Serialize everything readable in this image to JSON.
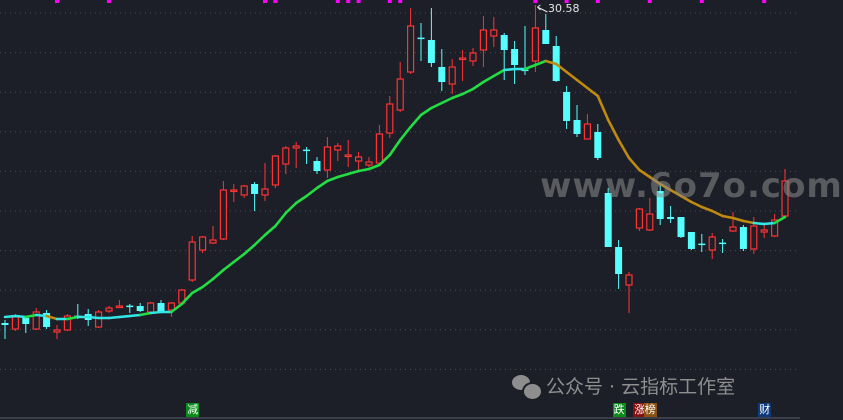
{
  "chart_data": {
    "type": "candlestick",
    "title": "",
    "high_label": "30.58",
    "grid": true,
    "colors": {
      "up": "#ff3333",
      "down": "#55ffff",
      "ma_up": "#22dd44",
      "ma_flat": "#33e6e6",
      "ma_down": "#c08a10",
      "marker": "#ff00ff",
      "background": "#1c1f27"
    },
    "candles": [
      [
        14.68,
        14.83,
        13.88,
        14.58
      ],
      [
        14.38,
        15.13,
        14.28,
        14.98
      ],
      [
        14.93,
        15.03,
        14.18,
        14.63
      ],
      [
        14.38,
        15.43,
        14.33,
        15.23
      ],
      [
        15.18,
        15.33,
        14.38,
        14.48
      ],
      [
        14.23,
        14.58,
        13.88,
        14.33
      ],
      [
        14.33,
        15.13,
        14.28,
        15.03
      ],
      [
        15.05,
        15.63,
        14.88,
        15.03
      ],
      [
        15.13,
        15.38,
        14.53,
        14.83
      ],
      [
        14.48,
        15.33,
        14.43,
        15.23
      ],
      [
        15.28,
        15.53,
        15.18,
        15.43
      ],
      [
        15.5,
        15.83,
        15.43,
        15.53
      ],
      [
        15.55,
        15.63,
        15.18,
        15.53
      ],
      [
        15.53,
        15.68,
        15.23,
        15.28
      ],
      [
        15.23,
        15.73,
        15.18,
        15.68
      ],
      [
        15.68,
        15.83,
        15.18,
        15.23
      ],
      [
        15.33,
        15.73,
        14.98,
        15.68
      ],
      [
        15.68,
        16.38,
        15.63,
        16.33
      ],
      [
        16.83,
        19.03,
        16.73,
        18.73
      ],
      [
        18.33,
        19.03,
        18.18,
        18.98
      ],
      [
        18.68,
        19.53,
        18.63,
        18.83
      ],
      [
        18.88,
        21.78,
        18.83,
        21.33
      ],
      [
        21.28,
        21.63,
        20.73,
        21.33
      ],
      [
        21.08,
        21.58,
        20.93,
        21.53
      ],
      [
        21.63,
        21.73,
        20.28,
        21.13
      ],
      [
        21.08,
        22.68,
        20.78,
        21.38
      ],
      [
        21.58,
        23.08,
        21.43,
        23.03
      ],
      [
        22.63,
        23.53,
        22.13,
        23.43
      ],
      [
        23.43,
        23.73,
        22.43,
        23.53
      ],
      [
        23.35,
        23.48,
        22.63,
        23.33
      ],
      [
        22.78,
        22.98,
        22.13,
        22.28
      ],
      [
        22.33,
        23.98,
        21.93,
        23.48
      ],
      [
        23.33,
        23.68,
        22.78,
        23.53
      ],
      [
        23.05,
        23.83,
        22.48,
        23.08
      ],
      [
        22.78,
        23.23,
        22.28,
        22.98
      ],
      [
        22.58,
        22.98,
        22.48,
        22.73
      ],
      [
        22.68,
        24.58,
        22.58,
        24.13
      ],
      [
        24.18,
        26.03,
        23.93,
        25.63
      ],
      [
        25.33,
        27.73,
        25.23,
        26.88
      ],
      [
        27.23,
        30.43,
        27.13,
        29.53
      ],
      [
        28.95,
        29.68,
        27.78,
        28.93
      ],
      [
        28.83,
        30.43,
        27.48,
        27.68
      ],
      [
        27.48,
        28.38,
        26.28,
        26.73
      ],
      [
        26.63,
        27.88,
        26.13,
        27.48
      ],
      [
        27.9,
        28.33,
        26.78,
        27.93
      ],
      [
        27.78,
        28.43,
        27.53,
        28.18
      ],
      [
        28.33,
        30.03,
        27.48,
        29.33
      ],
      [
        29.03,
        29.98,
        28.48,
        29.33
      ],
      [
        29.08,
        29.18,
        26.83,
        28.33
      ],
      [
        28.38,
        28.78,
        26.63,
        27.58
      ],
      [
        27.35,
        29.53,
        27.08,
        27.33
      ],
      [
        27.78,
        30.58,
        27.23,
        29.43
      ],
      [
        29.33,
        30.13,
        28.63,
        28.63
      ],
      [
        28.53,
        29.03,
        26.73,
        26.78
      ],
      [
        26.23,
        26.53,
        24.38,
        24.78
      ],
      [
        24.83,
        25.58,
        23.98,
        24.13
      ],
      [
        23.88,
        25.13,
        23.88,
        24.63
      ],
      [
        24.23,
        24.63,
        22.83,
        22.93
      ],
      [
        21.18,
        21.43,
        18.48,
        18.48
      ],
      [
        18.48,
        18.83,
        16.38,
        17.13
      ],
      [
        16.58,
        17.23,
        15.18,
        17.08
      ],
      [
        19.43,
        20.43,
        19.28,
        20.38
      ],
      [
        19.33,
        20.93,
        19.28,
        20.13
      ],
      [
        21.28,
        21.63,
        19.58,
        19.88
      ],
      [
        19.98,
        20.53,
        19.68,
        19.88
      ],
      [
        19.98,
        19.98,
        18.93,
        18.98
      ],
      [
        19.23,
        19.23,
        18.33,
        18.38
      ],
      [
        18.65,
        19.13,
        18.23,
        18.63
      ],
      [
        18.33,
        19.18,
        17.88,
        18.98
      ],
      [
        18.7,
        18.88,
        18.18,
        18.68
      ],
      [
        19.28,
        20.23,
        19.23,
        19.48
      ],
      [
        19.48,
        19.58,
        18.28,
        18.38
      ],
      [
        18.38,
        19.98,
        18.13,
        19.53
      ],
      [
        19.23,
        19.63,
        18.93,
        19.33
      ],
      [
        19.03,
        20.13,
        18.98,
        19.83
      ],
      [
        20.03,
        22.38,
        19.98,
        21.78
      ]
    ],
    "ma": [
      14.98,
      15.03,
      14.98,
      15.08,
      15.03,
      14.88,
      14.88,
      14.98,
      14.98,
      14.93,
      14.93,
      14.98,
      15.03,
      15.08,
      15.18,
      15.23,
      15.23,
      15.63,
      16.18,
      16.48,
      16.88,
      17.33,
      17.73,
      18.13,
      18.58,
      19.08,
      19.53,
      20.18,
      20.68,
      21.03,
      21.43,
      21.78,
      21.98,
      22.13,
      22.28,
      22.38,
      22.58,
      23.08,
      23.83,
      24.48,
      25.08,
      25.43,
      25.68,
      25.93,
      26.13,
      26.38,
      26.73,
      27.03,
      27.33,
      27.38,
      27.38,
      27.58,
      27.78,
      27.63,
      27.23,
      26.83,
      26.43,
      26.03,
      24.83,
      23.83,
      22.93,
      22.33,
      21.98,
      21.63,
      21.33,
      21.03,
      20.73,
      20.48,
      20.28,
      20.03,
      19.93,
      19.78,
      19.68,
      19.63,
      19.68,
      19.98
    ],
    "top_markers": [
      5,
      10,
      25,
      26,
      32,
      33,
      34,
      37,
      38,
      51,
      54,
      57,
      62,
      67,
      73
    ],
    "bottom_tags": [
      {
        "text": "减",
        "bg": "#0a8a1a",
        "candle": 18
      },
      {
        "text": "跌",
        "bg": "#0a8a1a",
        "candle": 59
      },
      {
        "text": "涨",
        "bg": "#8a1010",
        "candle": 61
      },
      {
        "text": "榜",
        "bg": "#8a5010",
        "candle": 62
      },
      {
        "text": "财",
        "bg": "#0e3a7a",
        "candle": 73
      }
    ]
  },
  "watermark": {
    "site": "www.6o7o.com",
    "wechat": "公众号 · 云指标工作室",
    "icon": "wechat-icon"
  }
}
